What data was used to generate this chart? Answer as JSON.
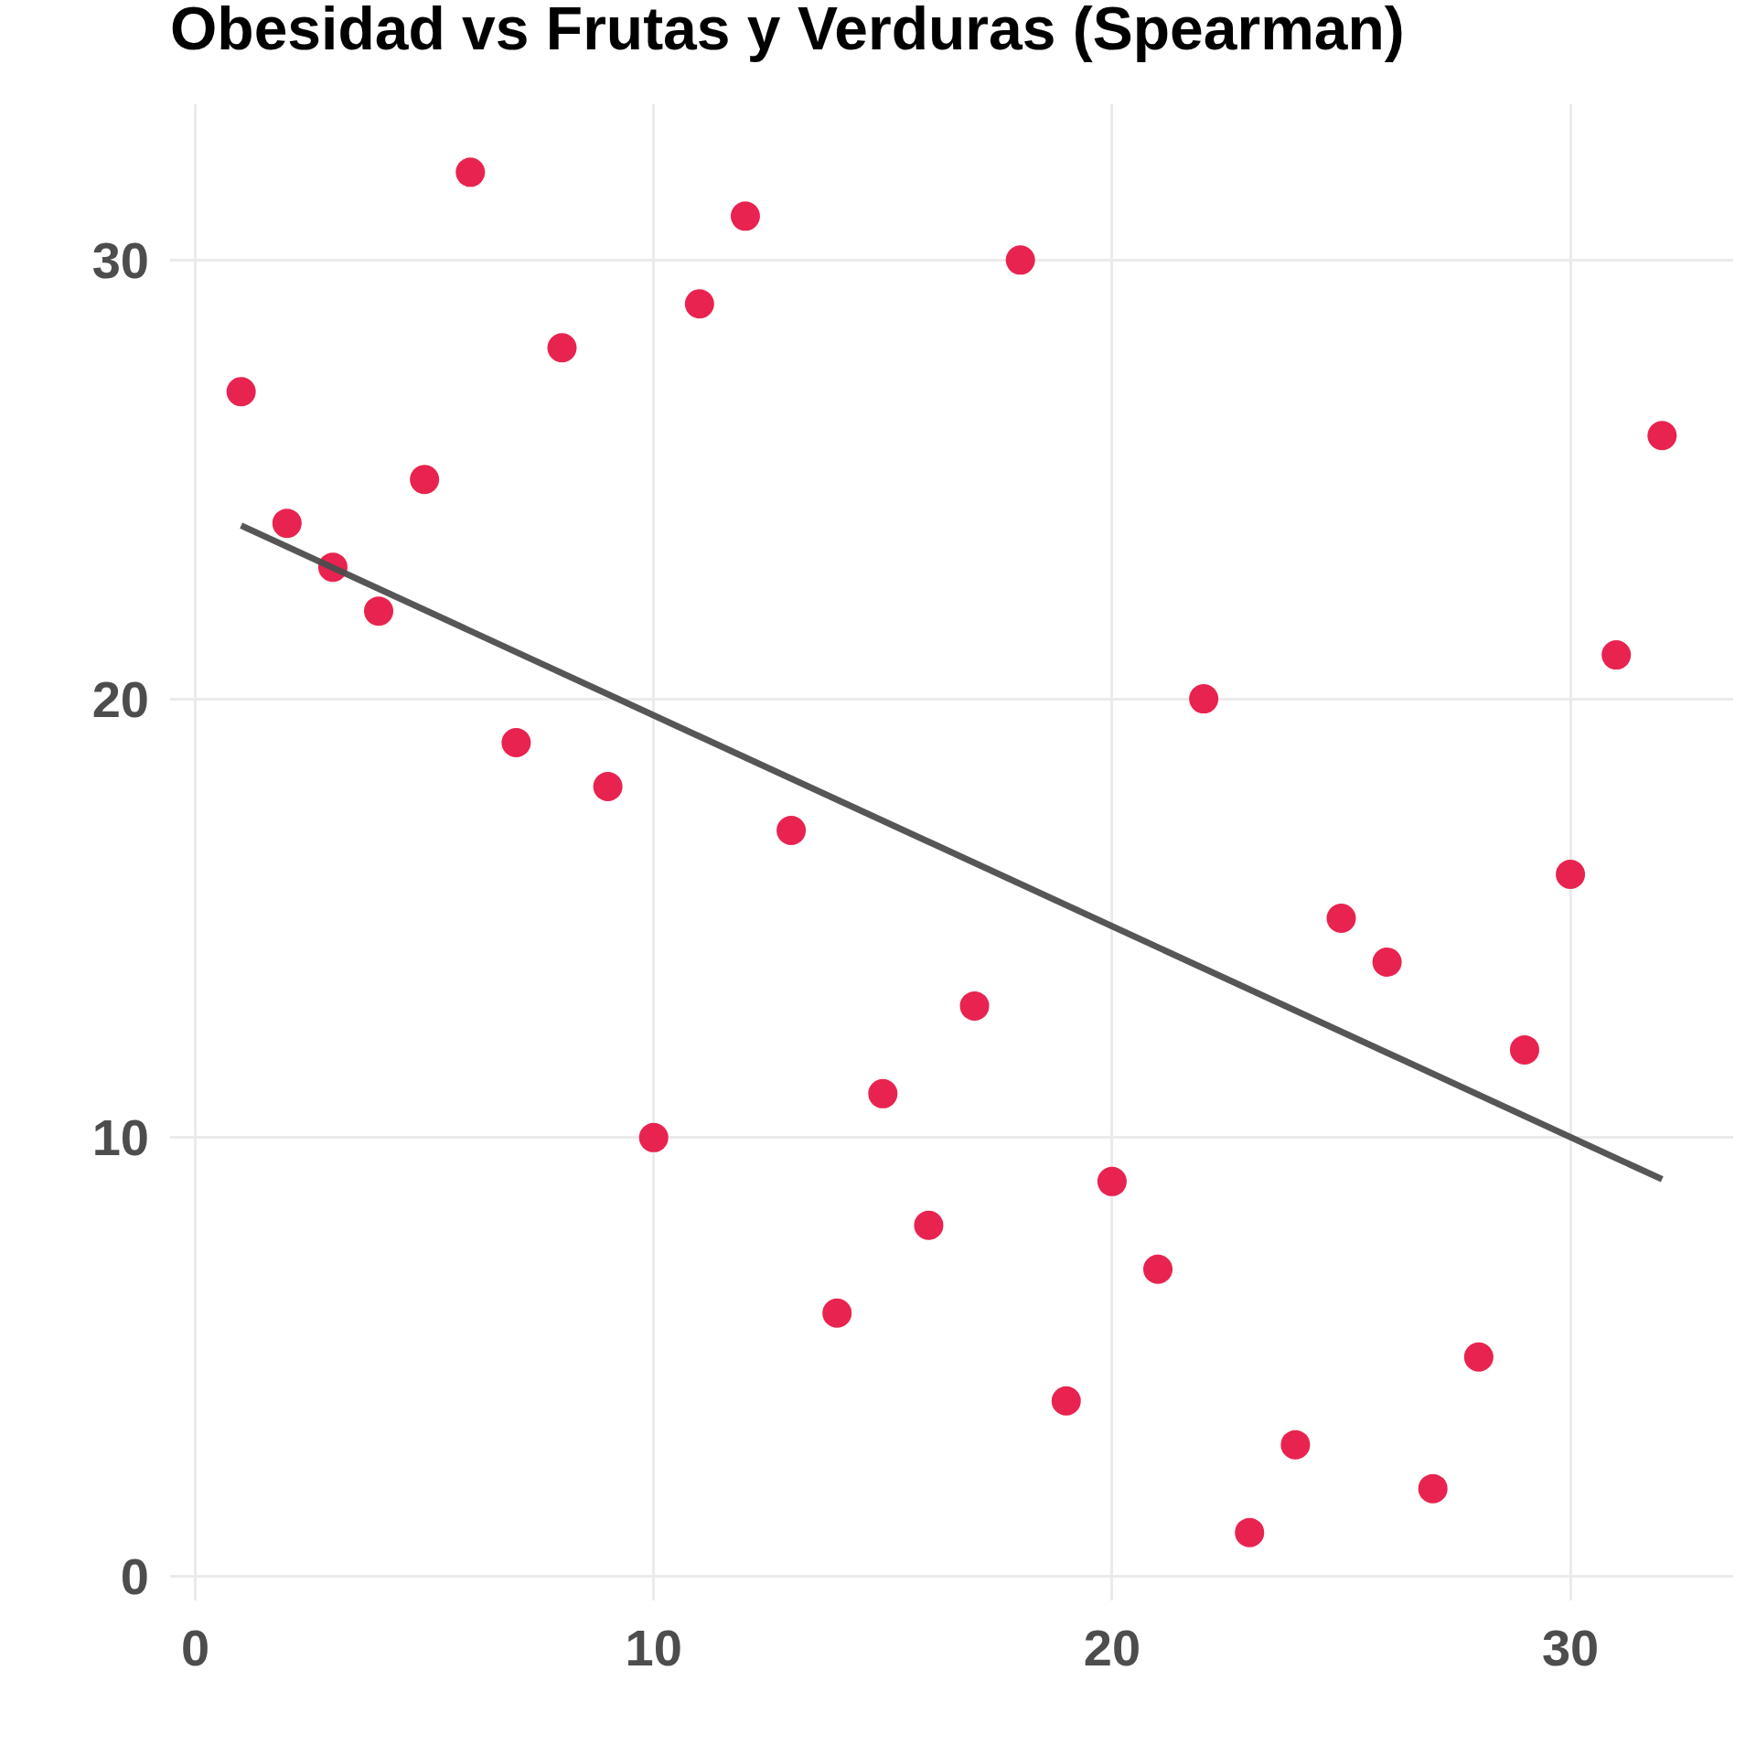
{
  "chart_data": {
    "type": "scatter",
    "title": "Obesidad vs Frutas y Verduras (Spearman)",
    "series": [
      {
        "color": "#e8234f",
        "marker": "circle",
        "x": [
          1,
          2,
          3,
          4,
          5,
          6,
          7,
          8,
          9,
          10,
          11,
          12,
          13,
          14,
          15,
          16,
          17,
          18,
          19,
          20,
          21,
          22,
          23,
          24,
          25,
          26,
          27,
          28,
          29,
          30,
          31,
          32
        ],
        "values": [
          27,
          24,
          23,
          22,
          25,
          32,
          19,
          28,
          18,
          10,
          29,
          31,
          17,
          6,
          11,
          8,
          13,
          30,
          4,
          9,
          7,
          20,
          1,
          3,
          15,
          14,
          2,
          5,
          12,
          16,
          21,
          26
        ]
      },
      {
        "type": "line",
        "color": "#4d4d4d",
        "x": [
          1,
          32
        ],
        "values": [
          23.95,
          9.05
        ]
      }
    ],
    "xlim": [
      -0.55,
      33.55
    ],
    "xticks": [
      0,
      10,
      20,
      30
    ],
    "ylim": [
      -0.55,
      33.55
    ],
    "yticks": [
      0,
      10,
      20,
      30
    ],
    "grid": true,
    "line_style": "solid"
  }
}
